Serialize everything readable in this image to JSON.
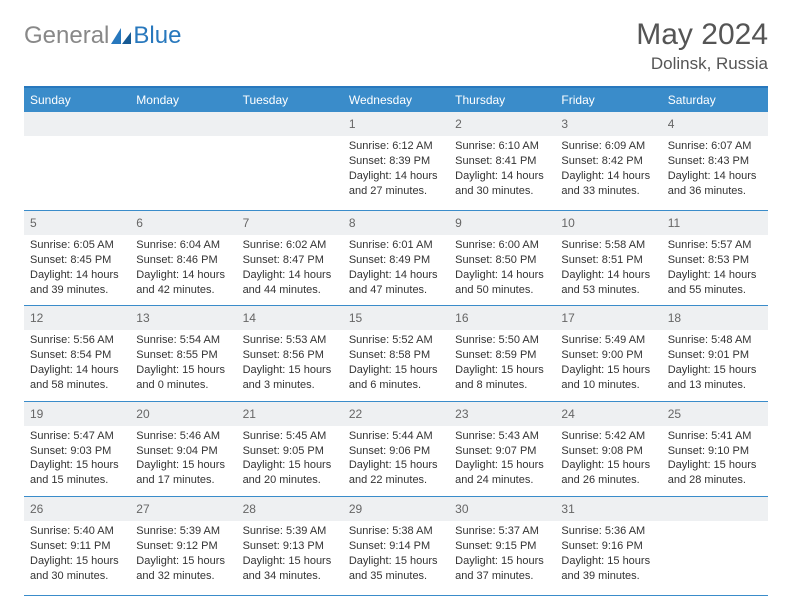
{
  "brand": {
    "part1": "General",
    "part2": "Blue"
  },
  "title": "May 2024",
  "location": "Dolinsk, Russia",
  "header_bg": "#3a8cca",
  "border_color": "#2878bd",
  "daynum_bg": "#eef0f2",
  "day_names": [
    "Sunday",
    "Monday",
    "Tuesday",
    "Wednesday",
    "Thursday",
    "Friday",
    "Saturday"
  ],
  "weeks": [
    [
      null,
      null,
      null,
      {
        "n": "1",
        "sr": "6:12 AM",
        "ss": "8:39 PM",
        "dl": "14 hours and 27 minutes."
      },
      {
        "n": "2",
        "sr": "6:10 AM",
        "ss": "8:41 PM",
        "dl": "14 hours and 30 minutes."
      },
      {
        "n": "3",
        "sr": "6:09 AM",
        "ss": "8:42 PM",
        "dl": "14 hours and 33 minutes."
      },
      {
        "n": "4",
        "sr": "6:07 AM",
        "ss": "8:43 PM",
        "dl": "14 hours and 36 minutes."
      }
    ],
    [
      {
        "n": "5",
        "sr": "6:05 AM",
        "ss": "8:45 PM",
        "dl": "14 hours and 39 minutes."
      },
      {
        "n": "6",
        "sr": "6:04 AM",
        "ss": "8:46 PM",
        "dl": "14 hours and 42 minutes."
      },
      {
        "n": "7",
        "sr": "6:02 AM",
        "ss": "8:47 PM",
        "dl": "14 hours and 44 minutes."
      },
      {
        "n": "8",
        "sr": "6:01 AM",
        "ss": "8:49 PM",
        "dl": "14 hours and 47 minutes."
      },
      {
        "n": "9",
        "sr": "6:00 AM",
        "ss": "8:50 PM",
        "dl": "14 hours and 50 minutes."
      },
      {
        "n": "10",
        "sr": "5:58 AM",
        "ss": "8:51 PM",
        "dl": "14 hours and 53 minutes."
      },
      {
        "n": "11",
        "sr": "5:57 AM",
        "ss": "8:53 PM",
        "dl": "14 hours and 55 minutes."
      }
    ],
    [
      {
        "n": "12",
        "sr": "5:56 AM",
        "ss": "8:54 PM",
        "dl": "14 hours and 58 minutes."
      },
      {
        "n": "13",
        "sr": "5:54 AM",
        "ss": "8:55 PM",
        "dl": "15 hours and 0 minutes."
      },
      {
        "n": "14",
        "sr": "5:53 AM",
        "ss": "8:56 PM",
        "dl": "15 hours and 3 minutes."
      },
      {
        "n": "15",
        "sr": "5:52 AM",
        "ss": "8:58 PM",
        "dl": "15 hours and 6 minutes."
      },
      {
        "n": "16",
        "sr": "5:50 AM",
        "ss": "8:59 PM",
        "dl": "15 hours and 8 minutes."
      },
      {
        "n": "17",
        "sr": "5:49 AM",
        "ss": "9:00 PM",
        "dl": "15 hours and 10 minutes."
      },
      {
        "n": "18",
        "sr": "5:48 AM",
        "ss": "9:01 PM",
        "dl": "15 hours and 13 minutes."
      }
    ],
    [
      {
        "n": "19",
        "sr": "5:47 AM",
        "ss": "9:03 PM",
        "dl": "15 hours and 15 minutes."
      },
      {
        "n": "20",
        "sr": "5:46 AM",
        "ss": "9:04 PM",
        "dl": "15 hours and 17 minutes."
      },
      {
        "n": "21",
        "sr": "5:45 AM",
        "ss": "9:05 PM",
        "dl": "15 hours and 20 minutes."
      },
      {
        "n": "22",
        "sr": "5:44 AM",
        "ss": "9:06 PM",
        "dl": "15 hours and 22 minutes."
      },
      {
        "n": "23",
        "sr": "5:43 AM",
        "ss": "9:07 PM",
        "dl": "15 hours and 24 minutes."
      },
      {
        "n": "24",
        "sr": "5:42 AM",
        "ss": "9:08 PM",
        "dl": "15 hours and 26 minutes."
      },
      {
        "n": "25",
        "sr": "5:41 AM",
        "ss": "9:10 PM",
        "dl": "15 hours and 28 minutes."
      }
    ],
    [
      {
        "n": "26",
        "sr": "5:40 AM",
        "ss": "9:11 PM",
        "dl": "15 hours and 30 minutes."
      },
      {
        "n": "27",
        "sr": "5:39 AM",
        "ss": "9:12 PM",
        "dl": "15 hours and 32 minutes."
      },
      {
        "n": "28",
        "sr": "5:39 AM",
        "ss": "9:13 PM",
        "dl": "15 hours and 34 minutes."
      },
      {
        "n": "29",
        "sr": "5:38 AM",
        "ss": "9:14 PM",
        "dl": "15 hours and 35 minutes."
      },
      {
        "n": "30",
        "sr": "5:37 AM",
        "ss": "9:15 PM",
        "dl": "15 hours and 37 minutes."
      },
      {
        "n": "31",
        "sr": "5:36 AM",
        "ss": "9:16 PM",
        "dl": "15 hours and 39 minutes."
      },
      null
    ]
  ],
  "labels": {
    "sunrise": "Sunrise:",
    "sunset": "Sunset:",
    "daylight": "Daylight:"
  }
}
